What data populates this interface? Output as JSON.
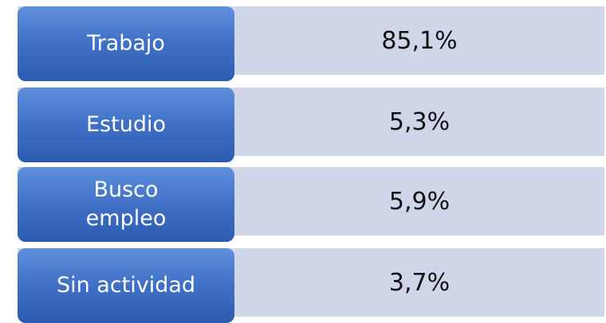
{
  "rows": [
    {
      "label": "Trabajo",
      "value": "85,1%"
    },
    {
      "label": "Estudio",
      "value": "5,3%"
    },
    {
      "label": "Busco empleo",
      "value": "5,9%"
    },
    {
      "label": "Sin actividad",
      "value": "3,7%"
    }
  ]
}
